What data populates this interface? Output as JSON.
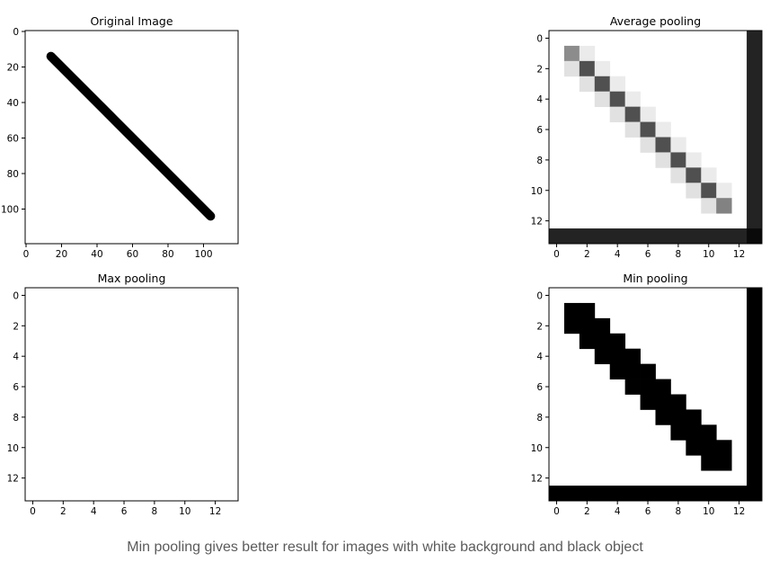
{
  "caption": "Min pooling gives better result for images with white background and black object",
  "chart_data": [
    {
      "type": "heatmap",
      "title": "Original Image",
      "colormap": "gray",
      "image_size": [
        120,
        120
      ],
      "xticks": [
        0,
        20,
        40,
        60,
        80,
        100
      ],
      "yticks": [
        0,
        20,
        40,
        60,
        80,
        100
      ],
      "xlim": [
        -0.5,
        119.5
      ],
      "ylim": [
        119.5,
        -0.5
      ],
      "background_value": 255,
      "line": {
        "from": [
          14,
          14
        ],
        "to": [
          104,
          104
        ],
        "value": 0
      }
    },
    {
      "type": "heatmap",
      "title": "Average pooling",
      "colormap": "gray",
      "grid_size": [
        14,
        14
      ],
      "xticks": [
        0,
        2,
        4,
        6,
        8,
        10,
        12
      ],
      "yticks": [
        0,
        2,
        4,
        6,
        8,
        10,
        12
      ],
      "background_value": 255,
      "cells": [
        {
          "row": 1,
          "col": 1,
          "value": 140
        },
        {
          "row": 1,
          "col": 2,
          "value": 235
        },
        {
          "row": 2,
          "col": 1,
          "value": 225
        },
        {
          "row": 2,
          "col": 2,
          "value": 80
        },
        {
          "row": 2,
          "col": 3,
          "value": 235
        },
        {
          "row": 3,
          "col": 2,
          "value": 225
        },
        {
          "row": 3,
          "col": 3,
          "value": 80
        },
        {
          "row": 3,
          "col": 4,
          "value": 235
        },
        {
          "row": 4,
          "col": 3,
          "value": 225
        },
        {
          "row": 4,
          "col": 4,
          "value": 80
        },
        {
          "row": 4,
          "col": 5,
          "value": 235
        },
        {
          "row": 5,
          "col": 4,
          "value": 225
        },
        {
          "row": 5,
          "col": 5,
          "value": 80
        },
        {
          "row": 5,
          "col": 6,
          "value": 235
        },
        {
          "row": 6,
          "col": 5,
          "value": 225
        },
        {
          "row": 6,
          "col": 6,
          "value": 80
        },
        {
          "row": 6,
          "col": 7,
          "value": 235
        },
        {
          "row": 7,
          "col": 6,
          "value": 225
        },
        {
          "row": 7,
          "col": 7,
          "value": 80
        },
        {
          "row": 7,
          "col": 8,
          "value": 235
        },
        {
          "row": 8,
          "col": 7,
          "value": 225
        },
        {
          "row": 8,
          "col": 8,
          "value": 80
        },
        {
          "row": 8,
          "col": 9,
          "value": 235
        },
        {
          "row": 9,
          "col": 8,
          "value": 225
        },
        {
          "row": 9,
          "col": 9,
          "value": 80
        },
        {
          "row": 9,
          "col": 10,
          "value": 235
        },
        {
          "row": 10,
          "col": 9,
          "value": 225
        },
        {
          "row": 10,
          "col": 10,
          "value": 80
        },
        {
          "row": 10,
          "col": 11,
          "value": 235
        },
        {
          "row": 11,
          "col": 10,
          "value": 225
        },
        {
          "row": 11,
          "col": 11,
          "value": 130
        }
      ],
      "dark_last_row_value": 35,
      "dark_last_col_value": 35,
      "corner_value": 10
    },
    {
      "type": "heatmap",
      "title": "Max pooling",
      "colormap": "gray",
      "grid_size": [
        14,
        14
      ],
      "xticks": [
        0,
        2,
        4,
        6,
        8,
        10,
        12
      ],
      "yticks": [
        0,
        2,
        4,
        6,
        8,
        10,
        12
      ],
      "background_value": 255,
      "cells": []
    },
    {
      "type": "heatmap",
      "title": "Min pooling",
      "colormap": "gray",
      "grid_size": [
        14,
        14
      ],
      "xticks": [
        0,
        2,
        4,
        6,
        8,
        10,
        12
      ],
      "yticks": [
        0,
        2,
        4,
        6,
        8,
        10,
        12
      ],
      "background_value": 255,
      "cells": [
        {
          "row": 1,
          "col": 1,
          "value": 0
        },
        {
          "row": 1,
          "col": 2,
          "value": 0
        },
        {
          "row": 2,
          "col": 1,
          "value": 0
        },
        {
          "row": 2,
          "col": 2,
          "value": 0
        },
        {
          "row": 2,
          "col": 3,
          "value": 0
        },
        {
          "row": 3,
          "col": 2,
          "value": 0
        },
        {
          "row": 3,
          "col": 3,
          "value": 0
        },
        {
          "row": 3,
          "col": 4,
          "value": 0
        },
        {
          "row": 4,
          "col": 3,
          "value": 0
        },
        {
          "row": 4,
          "col": 4,
          "value": 0
        },
        {
          "row": 4,
          "col": 5,
          "value": 0
        },
        {
          "row": 5,
          "col": 4,
          "value": 0
        },
        {
          "row": 5,
          "col": 5,
          "value": 0
        },
        {
          "row": 5,
          "col": 6,
          "value": 0
        },
        {
          "row": 6,
          "col": 5,
          "value": 0
        },
        {
          "row": 6,
          "col": 6,
          "value": 0
        },
        {
          "row": 6,
          "col": 7,
          "value": 0
        },
        {
          "row": 7,
          "col": 6,
          "value": 0
        },
        {
          "row": 7,
          "col": 7,
          "value": 0
        },
        {
          "row": 7,
          "col": 8,
          "value": 0
        },
        {
          "row": 8,
          "col": 7,
          "value": 0
        },
        {
          "row": 8,
          "col": 8,
          "value": 0
        },
        {
          "row": 8,
          "col": 9,
          "value": 0
        },
        {
          "row": 9,
          "col": 8,
          "value": 0
        },
        {
          "row": 9,
          "col": 9,
          "value": 0
        },
        {
          "row": 9,
          "col": 10,
          "value": 0
        },
        {
          "row": 10,
          "col": 9,
          "value": 0
        },
        {
          "row": 10,
          "col": 10,
          "value": 0
        },
        {
          "row": 10,
          "col": 11,
          "value": 0
        },
        {
          "row": 11,
          "col": 10,
          "value": 0
        },
        {
          "row": 11,
          "col": 11,
          "value": 0
        }
      ],
      "dark_last_row_value": 0,
      "dark_last_col_value": 0,
      "corner_value": 0
    }
  ]
}
